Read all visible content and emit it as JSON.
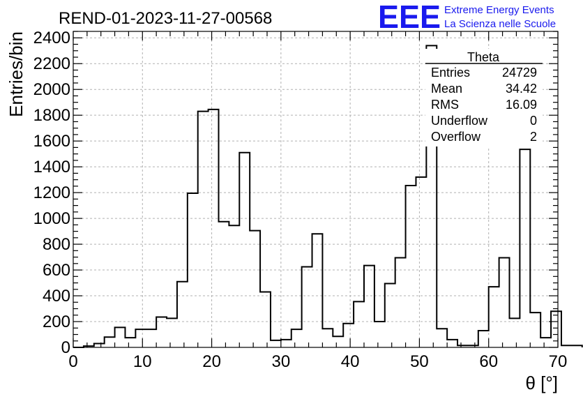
{
  "chart_data": {
    "type": "histogram",
    "title": "REND-01-2023-11-27-00568",
    "xlabel": "θ [°]",
    "ylabel": "Entries/bin",
    "xlim": [
      0,
      70
    ],
    "ylim": [
      0,
      2450
    ],
    "grid": true,
    "x_ticks": [
      0,
      10,
      20,
      30,
      40,
      50,
      60,
      70
    ],
    "y_ticks": [
      0,
      200,
      400,
      600,
      800,
      1000,
      1200,
      1400,
      1600,
      1800,
      2000,
      2200,
      2400
    ],
    "bin_width": 1.5,
    "bin_start": 0,
    "values": [
      0,
      10,
      30,
      80,
      155,
      75,
      140,
      140,
      235,
      225,
      510,
      1195,
      1830,
      1845,
      975,
      945,
      1510,
      905,
      430,
      55,
      60,
      140,
      625,
      880,
      145,
      85,
      185,
      355,
      635,
      200,
      495,
      695,
      1255,
      1320,
      2340,
      145,
      60,
      15,
      15,
      130,
      470,
      695,
      225,
      1535,
      270,
      75,
      280,
      15,
      15
    ],
    "stats": {
      "name": "Theta",
      "rows": [
        {
          "label": "Entries",
          "value": "24729"
        },
        {
          "label": "Mean",
          "value": "34.42"
        },
        {
          "label": "RMS",
          "value": "16.09"
        },
        {
          "label": "Underflow",
          "value": "0"
        },
        {
          "label": "Overflow",
          "value": "2"
        }
      ]
    }
  },
  "logo": {
    "mark": "EEE",
    "line1": "Extreme Energy Events",
    "line2": "La Scienza nelle Scuole",
    "color": "#1a1aee"
  }
}
